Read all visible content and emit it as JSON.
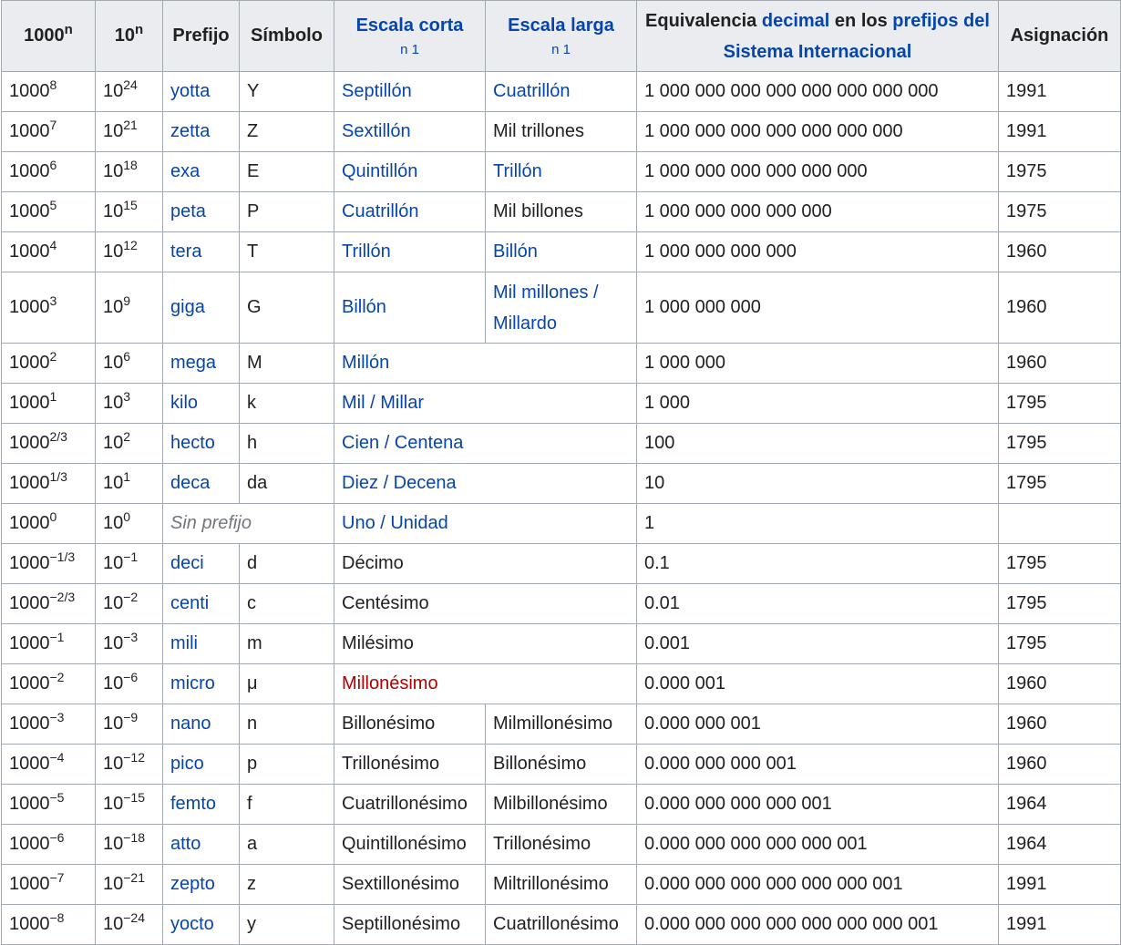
{
  "header": {
    "col_1000n": {
      "base": "1000",
      "exp": "n"
    },
    "col_10n": {
      "base": "10",
      "exp": "n"
    },
    "prefijo": "Prefijo",
    "simbolo": "Símbolo",
    "escala_corta": "Escala corta",
    "escala_corta_note": "n 1",
    "escala_larga": "Escala larga",
    "escala_larga_note": "n 1",
    "equiv_part1": "Equivalencia ",
    "equiv_link1": "decimal",
    "equiv_part2": " en los ",
    "equiv_link2": "prefijos del Sistema Internacional",
    "asignacion": "Asignación"
  },
  "rows": [
    {
      "p1000": "1000",
      "e1000": "8",
      "p10": "10",
      "e10": "24",
      "prefix": "yotta",
      "symbol": "Y",
      "corta": "Septillón",
      "larga": "Cuatrillón",
      "decimal": "1 000 000 000 000 000 000 000 000",
      "year": "1991"
    },
    {
      "p1000": "1000",
      "e1000": "7",
      "p10": "10",
      "e10": "21",
      "prefix": "zetta",
      "symbol": "Z",
      "corta": "Sextillón",
      "larga": "Mil trillones",
      "decimal": "1 000 000 000 000 000 000 000",
      "year": "1991"
    },
    {
      "p1000": "1000",
      "e1000": "6",
      "p10": "10",
      "e10": "18",
      "prefix": "exa",
      "symbol": "E",
      "corta": "Quintillón",
      "larga": "Trillón",
      "decimal": "1 000 000 000 000 000 000",
      "year": "1975"
    },
    {
      "p1000": "1000",
      "e1000": "5",
      "p10": "10",
      "e10": "15",
      "prefix": "peta",
      "symbol": "P",
      "corta": "Cuatrillón",
      "larga": "Mil billones",
      "decimal": "1 000 000 000 000 000",
      "year": "1975"
    },
    {
      "p1000": "1000",
      "e1000": "4",
      "p10": "10",
      "e10": "12",
      "prefix": "tera",
      "symbol": "T",
      "corta": "Trillón",
      "larga": "Billón",
      "decimal": "1 000 000 000 000",
      "year": "1960"
    },
    {
      "p1000": "1000",
      "e1000": "3",
      "p10": "10",
      "e10": "9",
      "prefix": "giga",
      "symbol": "G",
      "corta": "Billón",
      "larga_line1": "Mil millones /",
      "larga_line2": "Millardo",
      "decimal": "1 000 000 000",
      "year": "1960"
    },
    {
      "p1000": "1000",
      "e1000": "2",
      "p10": "10",
      "e10": "6",
      "prefix": "mega",
      "symbol": "M",
      "both": "Millón",
      "decimal": "1 000 000",
      "year": "1960"
    },
    {
      "p1000": "1000",
      "e1000": "1",
      "p10": "10",
      "e10": "3",
      "prefix": "kilo",
      "symbol": "k",
      "both": "Mil / Millar",
      "decimal": "1 000",
      "year": "1795"
    },
    {
      "p1000": "1000",
      "e1000": "2/3",
      "p10": "10",
      "e10": "2",
      "prefix": "hecto",
      "symbol": "h",
      "both": "Cien / Centena",
      "decimal": "100",
      "year": "1795"
    },
    {
      "p1000": "1000",
      "e1000": "1/3",
      "p10": "10",
      "e10": "1",
      "prefix": "deca",
      "symbol": "da",
      "both": "Diez / Decena",
      "decimal": "10",
      "year": "1795"
    },
    {
      "p1000": "1000",
      "e1000": "0",
      "p10": "10",
      "e10": "0",
      "noprefix": "Sin prefijo",
      "both": "Uno / Unidad",
      "decimal": "1",
      "year": ""
    },
    {
      "p1000": "1000",
      "e1000": "−1/3",
      "p10": "10",
      "e10": "−1",
      "prefix": "deci",
      "symbol": "d",
      "both": "Décimo",
      "decimal": "0.1",
      "year": "1795"
    },
    {
      "p1000": "1000",
      "e1000": "−2/3",
      "p10": "10",
      "e10": "−2",
      "prefix": "centi",
      "symbol": "c",
      "both": "Centésimo",
      "decimal": "0.01",
      "year": "1795"
    },
    {
      "p1000": "1000",
      "e1000": "−1",
      "p10": "10",
      "e10": "−3",
      "prefix": "mili",
      "symbol": "m",
      "both": "Milésimo",
      "decimal": "0.001",
      "year": "1795"
    },
    {
      "p1000": "1000",
      "e1000": "−2",
      "p10": "10",
      "e10": "−6",
      "prefix": "micro",
      "symbol": "μ",
      "both": "Millonésimo",
      "decimal": "0.000 001",
      "year": "1960"
    },
    {
      "p1000": "1000",
      "e1000": "−3",
      "p10": "10",
      "e10": "−9",
      "prefix": "nano",
      "symbol": "n",
      "corta": "Billonésimo",
      "larga": "Milmillonésimo",
      "decimal": "0.000 000 001",
      "year": "1960"
    },
    {
      "p1000": "1000",
      "e1000": "−4",
      "p10": "10",
      "e10": "−12",
      "prefix": "pico",
      "symbol": "p",
      "corta": "Trillonésimo",
      "larga": "Billonésimo",
      "decimal": "0.000 000 000 001",
      "year": "1960"
    },
    {
      "p1000": "1000",
      "e1000": "−5",
      "p10": "10",
      "e10": "−15",
      "prefix": "femto",
      "symbol": "f",
      "corta": "Cuatrillonésimo",
      "larga": "Milbillonésimo",
      "decimal": "0.000 000 000 000 001",
      "year": "1964"
    },
    {
      "p1000": "1000",
      "e1000": "−6",
      "p10": "10",
      "e10": "−18",
      "prefix": "atto",
      "symbol": "a",
      "corta": "Quintillonésimo",
      "larga": "Trillonésimo",
      "decimal": "0.000 000 000 000 000 001",
      "year": "1964"
    },
    {
      "p1000": "1000",
      "e1000": "−7",
      "p10": "10",
      "e10": "−21",
      "prefix": "zepto",
      "symbol": "z",
      "corta": "Sextillonésimo",
      "larga": "Miltrillonésimo",
      "decimal": "0.000 000 000 000 000 000 001",
      "year": "1991"
    },
    {
      "p1000": "1000",
      "e1000": "−8",
      "p10": "10",
      "e10": "−24",
      "prefix": "yocto",
      "symbol": "y",
      "corta": "Septillonésimo",
      "larga": "Cuatrillonésimo",
      "decimal": "0.000 000 000 000 000 000 000 001",
      "year": "1991"
    }
  ]
}
